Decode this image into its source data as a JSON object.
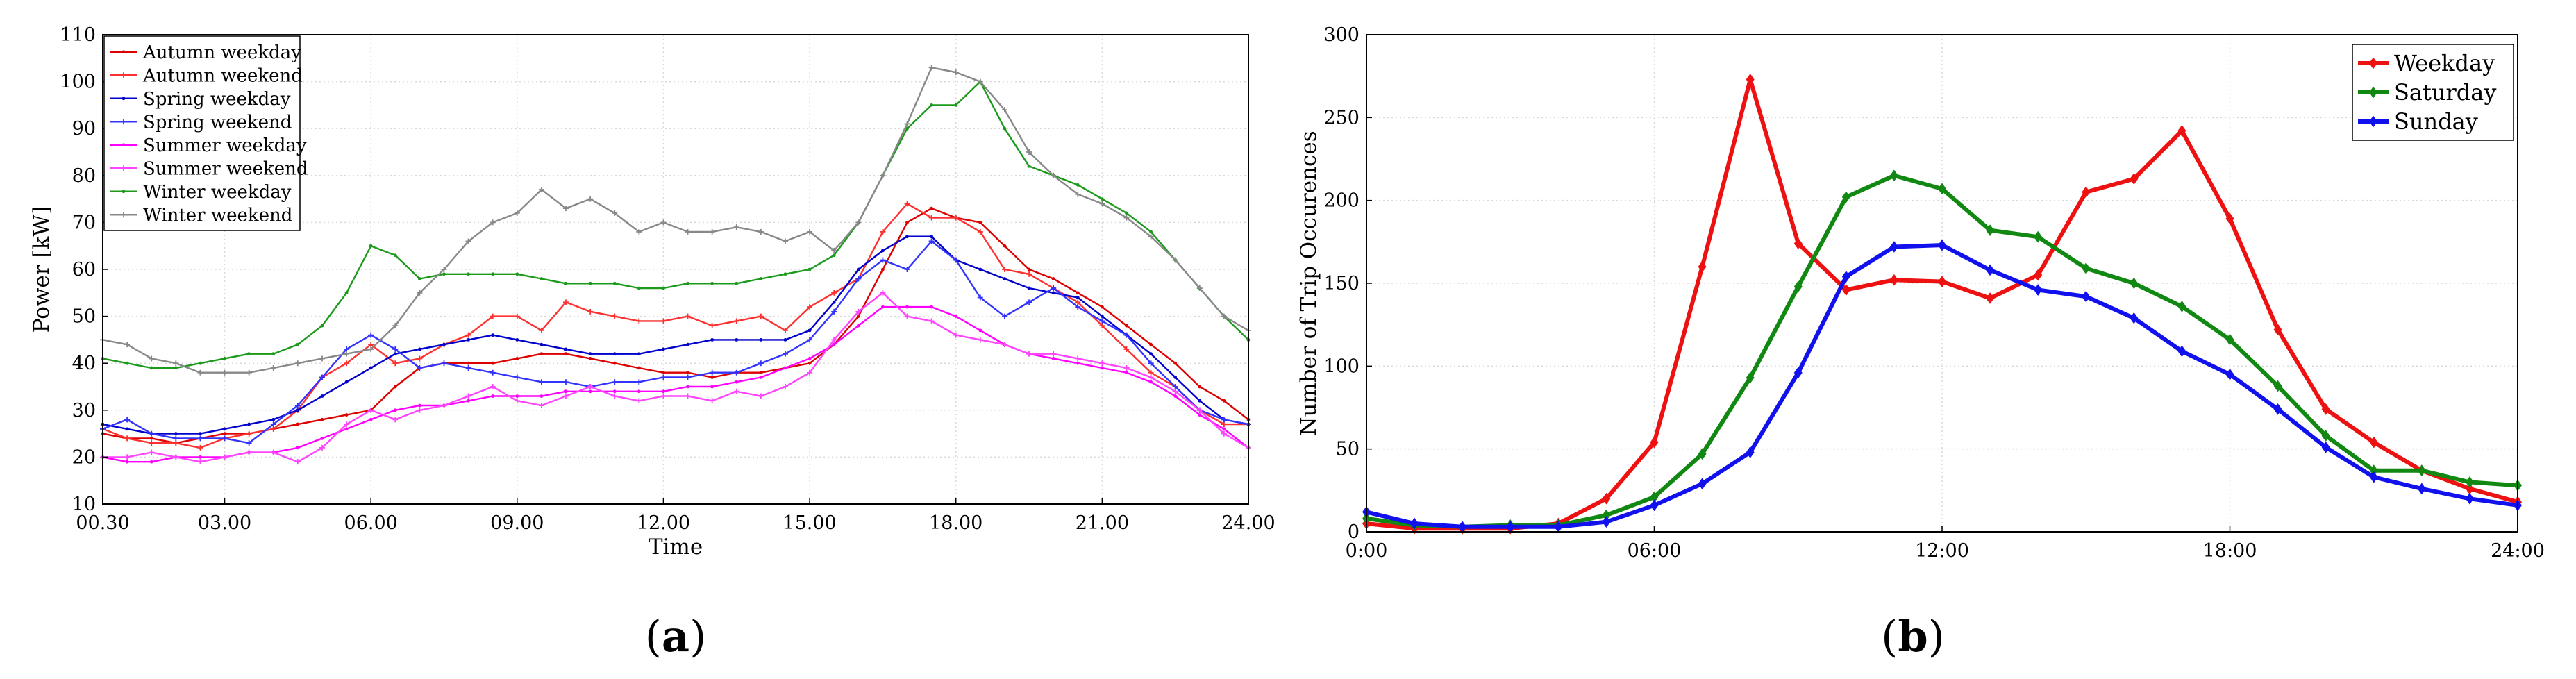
{
  "chart_data": [
    {
      "type": "line",
      "panel_label": "a",
      "xlabel": "Time",
      "ylabel": "Power [kW]",
      "ylim": [
        10,
        110
      ],
      "yticks": [
        10,
        20,
        30,
        40,
        50,
        60,
        70,
        80,
        90,
        100,
        110
      ],
      "xticks": [
        "00.30",
        "03.00",
        "06.00",
        "09.00",
        "12.00",
        "15.00",
        "18.00",
        "21.00",
        "24.00"
      ],
      "x_hours": [
        0.5,
        1,
        1.5,
        2,
        2.5,
        3,
        3.5,
        4,
        4.5,
        5,
        5.5,
        6,
        6.5,
        7,
        7.5,
        8,
        8.5,
        9,
        9.5,
        10,
        10.5,
        11,
        11.5,
        12,
        12.5,
        13,
        13.5,
        14,
        14.5,
        15,
        15.5,
        16,
        16.5,
        17,
        17.5,
        18,
        18.5,
        19,
        19.5,
        20,
        20.5,
        21,
        21.5,
        22,
        22.5,
        23,
        23.5,
        24
      ],
      "grid": true,
      "legend_position": "top-left",
      "series": [
        {
          "name": "Autumn weekday",
          "color": "#dd0000",
          "marker": "dot",
          "values": [
            25,
            24,
            24,
            23,
            24,
            25,
            25,
            26,
            27,
            28,
            29,
            30,
            35,
            39,
            40,
            40,
            40,
            41,
            42,
            42,
            41,
            40,
            39,
            38,
            38,
            37,
            38,
            38,
            39,
            40,
            44,
            50,
            60,
            70,
            73,
            71,
            70,
            65,
            60,
            58,
            55,
            52,
            48,
            44,
            40,
            35,
            32,
            28
          ]
        },
        {
          "name": "Autumn weekend",
          "color": "#ff3030",
          "marker": "plus",
          "values": [
            26,
            24,
            23,
            23,
            22,
            24,
            25,
            26,
            30,
            37,
            40,
            44,
            40,
            41,
            44,
            46,
            50,
            50,
            47,
            53,
            51,
            50,
            49,
            49,
            50,
            48,
            49,
            50,
            47,
            52,
            55,
            58,
            68,
            74,
            71,
            71,
            68,
            60,
            59,
            56,
            53,
            48,
            43,
            38,
            35,
            30,
            27,
            27
          ]
        },
        {
          "name": "Spring weekday",
          "color": "#0000cc",
          "marker": "dot",
          "values": [
            27,
            26,
            25,
            25,
            25,
            26,
            27,
            28,
            30,
            33,
            36,
            39,
            42,
            43,
            44,
            45,
            46,
            45,
            44,
            43,
            42,
            42,
            42,
            43,
            44,
            45,
            45,
            45,
            45,
            47,
            53,
            60,
            64,
            67,
            67,
            62,
            60,
            58,
            56,
            55,
            54,
            50,
            46,
            42,
            37,
            32,
            28,
            27
          ]
        },
        {
          "name": "Spring weekend",
          "color": "#3333ff",
          "marker": "plus",
          "values": [
            26,
            28,
            25,
            24,
            24,
            24,
            23,
            27,
            31,
            37,
            43,
            46,
            43,
            39,
            40,
            39,
            38,
            37,
            36,
            36,
            35,
            36,
            36,
            37,
            37,
            38,
            38,
            40,
            42,
            45,
            51,
            58,
            62,
            60,
            66,
            62,
            54,
            50,
            53,
            56,
            52,
            49,
            46,
            40,
            35,
            30,
            28,
            27
          ]
        },
        {
          "name": "Summer weekday",
          "color": "#ff00ff",
          "marker": "dot",
          "values": [
            20,
            19,
            19,
            20,
            20,
            20,
            21,
            21,
            22,
            24,
            26,
            28,
            30,
            31,
            31,
            32,
            33,
            33,
            33,
            34,
            34,
            34,
            34,
            34,
            35,
            35,
            36,
            37,
            39,
            41,
            44,
            48,
            52,
            52,
            52,
            50,
            47,
            44,
            42,
            41,
            40,
            39,
            38,
            36,
            33,
            29,
            26,
            22
          ]
        },
        {
          "name": "Summer weekend",
          "color": "#ff44ff",
          "marker": "plus",
          "values": [
            20,
            20,
            21,
            20,
            19,
            20,
            21,
            21,
            19,
            22,
            27,
            30,
            28,
            30,
            31,
            33,
            35,
            32,
            31,
            33,
            35,
            33,
            32,
            33,
            33,
            32,
            34,
            33,
            35,
            38,
            45,
            51,
            55,
            50,
            49,
            46,
            45,
            44,
            42,
            42,
            41,
            40,
            39,
            37,
            34,
            30,
            25,
            22
          ]
        },
        {
          "name": "Winter weekday",
          "color": "#1b9a1b",
          "marker": "dot",
          "values": [
            41,
            40,
            39,
            39,
            40,
            41,
            42,
            42,
            44,
            48,
            55,
            65,
            63,
            58,
            59,
            59,
            59,
            59,
            58,
            57,
            57,
            57,
            56,
            56,
            57,
            57,
            57,
            58,
            59,
            60,
            63,
            70,
            80,
            90,
            95,
            95,
            100,
            90,
            82,
            80,
            78,
            75,
            72,
            68,
            62,
            56,
            50,
            45
          ]
        },
        {
          "name": "Winter weekend",
          "color": "#888888",
          "marker": "plus",
          "values": [
            45,
            44,
            41,
            40,
            38,
            38,
            38,
            39,
            40,
            41,
            42,
            43,
            48,
            55,
            60,
            66,
            70,
            72,
            77,
            73,
            75,
            72,
            68,
            70,
            68,
            68,
            69,
            68,
            66,
            68,
            64,
            70,
            80,
            91,
            103,
            102,
            100,
            94,
            85,
            80,
            76,
            74,
            71,
            67,
            62,
            56,
            50,
            47
          ]
        }
      ]
    },
    {
      "type": "line",
      "panel_label": "b",
      "xlabel": "",
      "ylabel": "Number of Trip Occurences",
      "ylim": [
        0,
        300
      ],
      "yticks": [
        0,
        50,
        100,
        150,
        200,
        250,
        300
      ],
      "xticks": [
        "0:00",
        "06:00",
        "12:00",
        "18:00",
        "24:00"
      ],
      "x_hours": [
        0,
        1,
        2,
        3,
        4,
        5,
        6,
        7,
        8,
        9,
        10,
        11,
        12,
        13,
        14,
        15,
        16,
        17,
        18,
        19,
        20,
        21,
        22,
        23,
        24
      ],
      "grid": true,
      "legend_position": "top-right",
      "series": [
        {
          "name": "Weekday",
          "color": "#ee1111",
          "marker": "diamond",
          "values": [
            5,
            2,
            2,
            2,
            5,
            20,
            54,
            160,
            273,
            174,
            146,
            152,
            151,
            141,
            155,
            205,
            213,
            242,
            189,
            122,
            74,
            54,
            37,
            26,
            18
          ]
        },
        {
          "name": "Saturday",
          "color": "#118811",
          "marker": "diamond",
          "values": [
            8,
            4,
            3,
            4,
            4,
            10,
            21,
            47,
            93,
            148,
            202,
            215,
            207,
            182,
            178,
            159,
            150,
            136,
            116,
            88,
            58,
            37,
            37,
            30,
            28
          ]
        },
        {
          "name": "Sunday",
          "color": "#1111ee",
          "marker": "diamond",
          "values": [
            12,
            5,
            3,
            3,
            3,
            6,
            16,
            29,
            48,
            96,
            154,
            172,
            173,
            158,
            146,
            142,
            129,
            109,
            95,
            74,
            51,
            33,
            26,
            20,
            16
          ]
        }
      ]
    }
  ]
}
